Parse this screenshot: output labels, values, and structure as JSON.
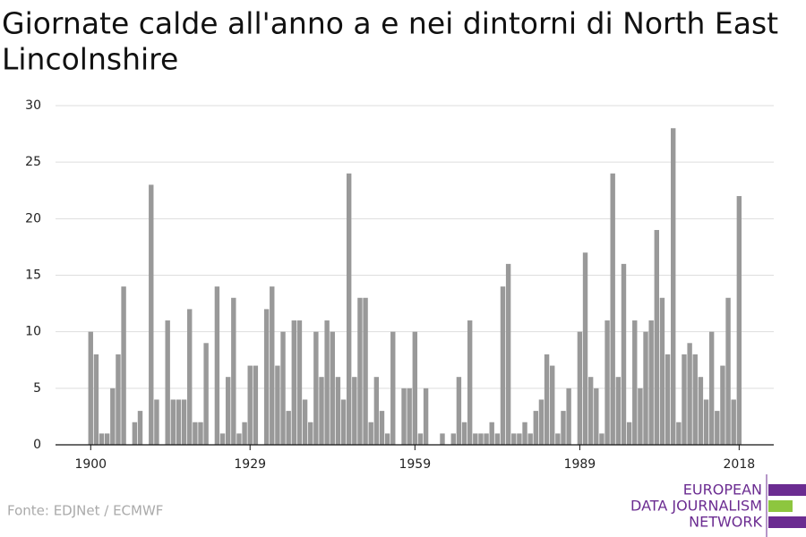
{
  "chart_data": {
    "type": "bar",
    "title": [
      "Giornate calde all'anno a e nei dintorni di North East",
      "Lincolnshire"
    ],
    "x": [
      1900,
      1901,
      1902,
      1903,
      1904,
      1905,
      1906,
      1907,
      1908,
      1909,
      1910,
      1911,
      1912,
      1913,
      1914,
      1915,
      1916,
      1917,
      1918,
      1919,
      1920,
      1921,
      1922,
      1923,
      1924,
      1925,
      1926,
      1927,
      1928,
      1929,
      1930,
      1931,
      1932,
      1933,
      1934,
      1935,
      1936,
      1937,
      1938,
      1939,
      1940,
      1941,
      1942,
      1943,
      1944,
      1945,
      1946,
      1947,
      1948,
      1949,
      1950,
      1951,
      1952,
      1953,
      1954,
      1955,
      1956,
      1957,
      1958,
      1959,
      1960,
      1961,
      1962,
      1963,
      1964,
      1965,
      1966,
      1967,
      1968,
      1969,
      1970,
      1971,
      1972,
      1973,
      1974,
      1975,
      1976,
      1977,
      1978,
      1979,
      1980,
      1981,
      1982,
      1983,
      1984,
      1985,
      1986,
      1987,
      1988,
      1989,
      1990,
      1991,
      1992,
      1993,
      1994,
      1995,
      1996,
      1997,
      1998,
      1999,
      2000,
      2001,
      2002,
      2003,
      2004,
      2005,
      2006,
      2007,
      2008,
      2009,
      2010,
      2011,
      2012,
      2013,
      2014,
      2015,
      2016,
      2017,
      2018
    ],
    "values": [
      10,
      8,
      1,
      1,
      5,
      8,
      14,
      0,
      2,
      3,
      0,
      23,
      4,
      0,
      11,
      4,
      4,
      4,
      12,
      2,
      2,
      9,
      0,
      14,
      1,
      6,
      13,
      1,
      2,
      7,
      7,
      0,
      12,
      14,
      7,
      10,
      3,
      11,
      11,
      4,
      2,
      10,
      6,
      11,
      10,
      6,
      4,
      24,
      6,
      13,
      13,
      2,
      6,
      3,
      1,
      10,
      0,
      5,
      5,
      10,
      1,
      5,
      0,
      0,
      1,
      0,
      1,
      6,
      2,
      11,
      1,
      1,
      1,
      2,
      1,
      14,
      16,
      1,
      1,
      2,
      1,
      3,
      4,
      8,
      7,
      1,
      3,
      5,
      0,
      10,
      17,
      6,
      5,
      1,
      11,
      24,
      6,
      16,
      2,
      11,
      5,
      10,
      11,
      19,
      13,
      8,
      28,
      2,
      8,
      9,
      8,
      6,
      4,
      10,
      3,
      7,
      13,
      4,
      22
    ],
    "color": "#999999",
    "xlim": [
      1893.6,
      2024.3
    ],
    "xticks": [
      1900,
      1929,
      1959,
      1989,
      2018
    ],
    "ylim": [
      0,
      30
    ],
    "yticks": [
      0,
      5,
      10,
      15,
      20,
      25,
      30
    ],
    "grid": true
  },
  "source": "Fonte: EDJNet / ECMWF",
  "logo": [
    "EUROPEAN",
    "DATA JOURNALISM",
    "NETWORK"
  ]
}
